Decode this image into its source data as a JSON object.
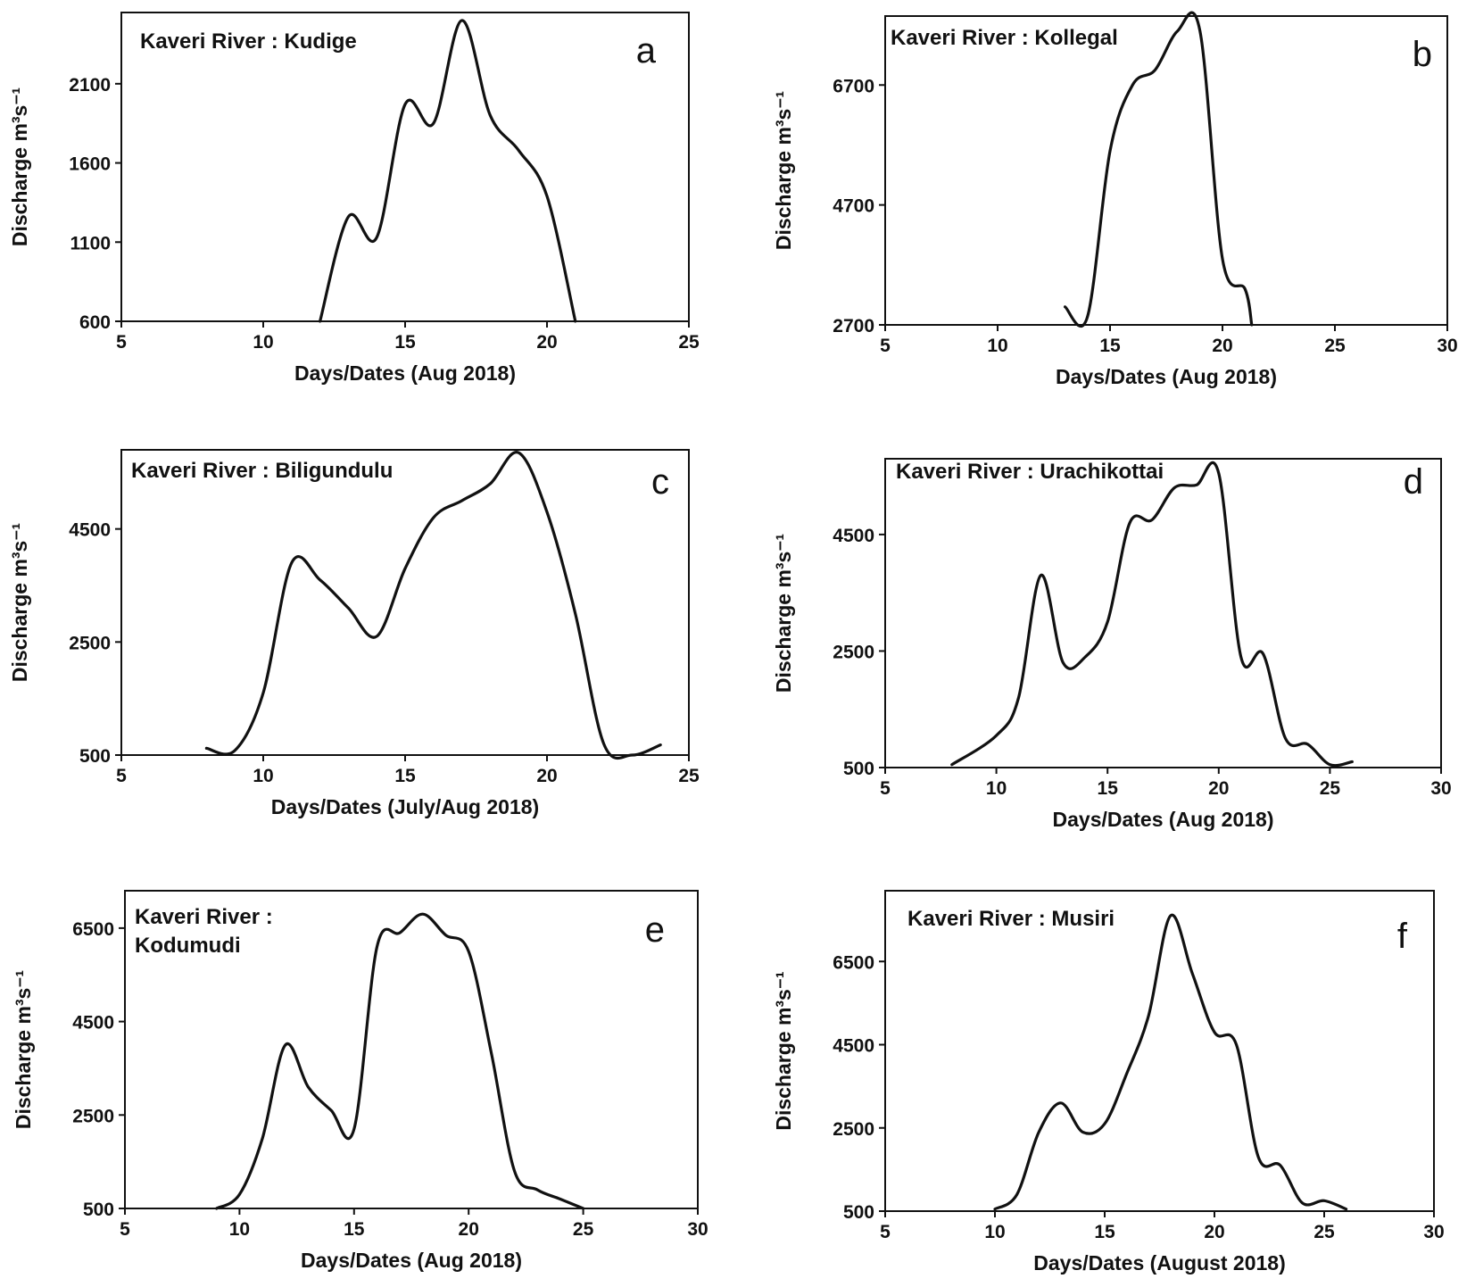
{
  "chart_data": [
    {
      "type": "line",
      "panel_label": "a",
      "title": "Kaveri River : Kudige",
      "xlabel": "Days/Dates (Aug 2018)",
      "ylabel": "Discharge m³s⁻¹",
      "xlim": [
        5,
        25
      ],
      "ylim": [
        600,
        2550
      ],
      "xticks": [
        5,
        10,
        15,
        20,
        25
      ],
      "yticks": [
        600,
        1100,
        1600,
        2100
      ],
      "x": [
        12,
        13,
        14,
        15,
        16,
        17,
        18,
        19,
        20,
        21
      ],
      "y": [
        600,
        1260,
        1130,
        1970,
        1850,
        2500,
        1900,
        1680,
        1390,
        600
      ]
    },
    {
      "type": "line",
      "panel_label": "b",
      "title": "Kaveri River : Kollegal",
      "xlabel": "Days/Dates (Aug 2018)",
      "ylabel": "Discharge m³s⁻¹",
      "xlim": [
        5,
        30
      ],
      "ylim": [
        2700,
        7850
      ],
      "xticks": [
        5,
        10,
        15,
        20,
        25,
        30
      ],
      "yticks": [
        2700,
        4700,
        6700
      ],
      "x": [
        13,
        14,
        15,
        16,
        17,
        18,
        19,
        20,
        21,
        21.3
      ],
      "y": [
        3000,
        2840,
        5600,
        6700,
        6950,
        7600,
        7600,
        3800,
        3300,
        2700
      ]
    },
    {
      "type": "line",
      "panel_label": "c",
      "title": "Kaveri River : Biligundulu",
      "xlabel": "Days/Dates (July/Aug 2018)",
      "ylabel": "Discharge m³s⁻¹",
      "xlim": [
        5,
        25
      ],
      "ylim": [
        500,
        5900
      ],
      "xticks": [
        5,
        10,
        15,
        20,
        25
      ],
      "yticks": [
        500,
        2500,
        4500
      ],
      "x": [
        8,
        9,
        10,
        11,
        12,
        13,
        14,
        15,
        16,
        17,
        18,
        19,
        20,
        21,
        22,
        23,
        24
      ],
      "y": [
        620,
        580,
        1600,
        3900,
        3600,
        3100,
        2600,
        3800,
        4700,
        5000,
        5300,
        5850,
        4800,
        3000,
        700,
        500,
        680
      ]
    },
    {
      "type": "line",
      "panel_label": "d",
      "title": "Kaveri River : Urachikottai",
      "xlabel": "Days/Dates (Aug 2018)",
      "ylabel": "Discharge m³s⁻¹",
      "xlim": [
        5,
        30
      ],
      "ylim": [
        500,
        5800
      ],
      "xticks": [
        5,
        10,
        15,
        20,
        25,
        30
      ],
      "yticks": [
        500,
        2500,
        4500
      ],
      "x": [
        8,
        10,
        11,
        12,
        13,
        14,
        15,
        16,
        17,
        18,
        19,
        20,
        21,
        22,
        23,
        24,
        25,
        26
      ],
      "y": [
        550,
        1050,
        1700,
        3800,
        2300,
        2400,
        3000,
        4700,
        4750,
        5300,
        5350,
        5550,
        2400,
        2450,
        1000,
        900,
        550,
        600
      ]
    },
    {
      "type": "line",
      "panel_label": "e",
      "title": "Kaveri River :\nKodumudi",
      "xlabel": "Days/Dates (Aug 2018)",
      "ylabel": "Discharge m³s⁻¹",
      "xlim": [
        5,
        30
      ],
      "ylim": [
        500,
        7300
      ],
      "xticks": [
        5,
        10,
        15,
        20,
        25,
        30
      ],
      "yticks": [
        500,
        2500,
        4500,
        6500
      ],
      "x": [
        9,
        10,
        11,
        12,
        13,
        14,
        15,
        16,
        17,
        18,
        19,
        20,
        21,
        22,
        23,
        24,
        25
      ],
      "y": [
        500,
        800,
        2000,
        4000,
        3100,
        2600,
        2200,
        6100,
        6400,
        6800,
        6350,
        6000,
        3800,
        1300,
        900,
        700,
        500
      ]
    },
    {
      "type": "line",
      "panel_label": "f",
      "title": "Kaveri River : Musiri",
      "xlabel": "Days/Dates (August 2018)",
      "ylabel": "Discharge m³s⁻¹",
      "xlim": [
        5,
        30
      ],
      "ylim": [
        500,
        8200
      ],
      "xticks": [
        5,
        10,
        15,
        20,
        25,
        30
      ],
      "yticks": [
        500,
        2500,
        4500,
        6500
      ],
      "x": [
        10,
        11,
        12,
        13,
        14,
        15,
        16,
        17,
        18,
        19,
        20,
        21,
        22,
        23,
        24,
        25,
        26
      ],
      "y": [
        550,
        900,
        2400,
        3100,
        2400,
        2600,
        3800,
        5200,
        7600,
        6200,
        4800,
        4500,
        1800,
        1600,
        700,
        750,
        550
      ]
    }
  ]
}
